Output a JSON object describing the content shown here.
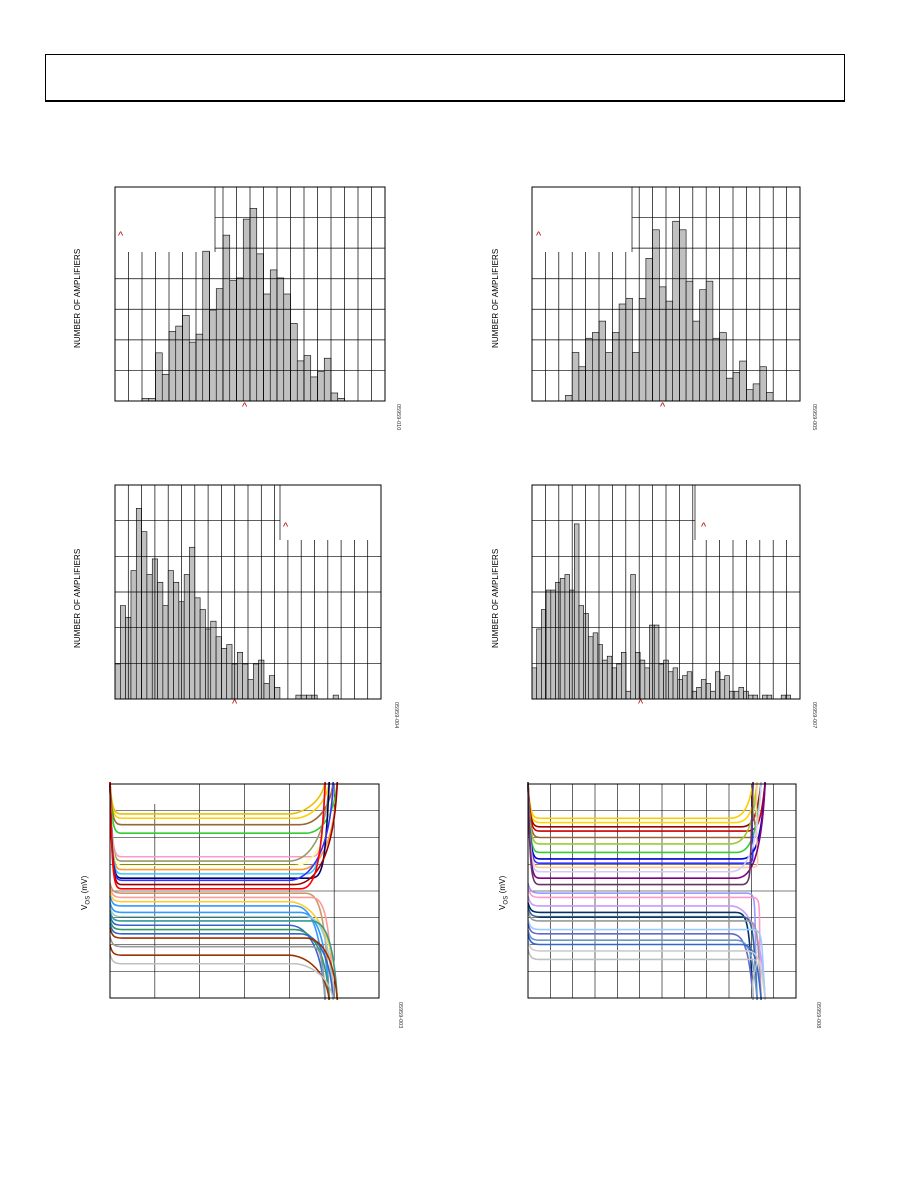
{
  "header": {
    "title": ""
  },
  "charts": [
    {
      "id": "h1",
      "type": "bar",
      "ylabel": "NUMBER OF AMPLIFIERS",
      "figcode": "05959-010",
      "colors": {
        "bar": "#c0c0c0",
        "stroke": "#000000",
        "grid": "#000000",
        "caret": "#c00000"
      },
      "chart_data": {
        "type": "bar",
        "values": [
          0,
          0,
          0,
          0,
          0.1,
          0.1,
          1.8,
          1.0,
          2.6,
          2.8,
          3.2,
          2.2,
          2.5,
          5.6,
          3.4,
          4.2,
          6.2,
          4.5,
          4.6,
          6.8,
          7.2,
          5.5,
          4.0,
          4.9,
          4.6,
          4.0,
          2.9,
          1.5,
          1.7,
          0.9,
          1.1,
          1.6,
          0.3,
          0.1,
          0,
          0,
          0,
          0,
          0,
          0
        ]
      },
      "grid": {
        "vlines": 20,
        "hlines": 7
      }
    },
    {
      "id": "h2",
      "type": "bar",
      "ylabel": "NUMBER OF AMPLIFIERS",
      "figcode": "05959-005",
      "colors": {
        "bar": "#c0c0c0",
        "stroke": "#000000",
        "grid": "#000000",
        "caret": "#c00000"
      },
      "chart_data": {
        "type": "bar",
        "values": [
          0,
          0,
          0,
          0,
          0,
          0.2,
          1.7,
          1.2,
          2.2,
          2.4,
          2.8,
          1.7,
          2.4,
          3.4,
          3.6,
          1.7,
          3.6,
          5.0,
          6.0,
          4.0,
          3.5,
          6.3,
          6.0,
          4.2,
          2.8,
          3.9,
          4.2,
          2.2,
          2.4,
          0.8,
          1.0,
          1.4,
          0.4,
          0.6,
          1.2,
          0.3,
          0,
          0,
          0,
          0
        ]
      },
      "grid": {
        "vlines": 20,
        "hlines": 7
      }
    },
    {
      "id": "h3",
      "type": "bar",
      "ylabel": "NUMBER OF AMPLIFIERS",
      "figcode": "05959-004",
      "colors": {
        "bar": "#c0c0c0",
        "stroke": "#000000",
        "grid": "#000000",
        "caret": "#c00000"
      },
      "chart_data": {
        "type": "bar",
        "values": [
          0.9,
          2.4,
          2.1,
          3.3,
          4.9,
          4.3,
          3.2,
          3.6,
          3.0,
          2.4,
          3.3,
          3.0,
          2.5,
          3.2,
          3.9,
          2.6,
          2.3,
          1.8,
          2.0,
          1.6,
          1.3,
          1.4,
          0.9,
          1.2,
          0.9,
          0.5,
          0.9,
          1.0,
          0.4,
          0.6,
          0.3,
          0,
          0,
          0,
          0.1,
          0.1,
          0.1,
          0.1,
          0,
          0,
          0,
          0.1,
          0,
          0,
          0,
          0,
          0,
          0,
          0,
          0
        ]
      },
      "grid": {
        "vlines": 20,
        "hlines": 6
      }
    },
    {
      "id": "h4",
      "type": "bar",
      "ylabel": "NUMBER OF AMPLIFIERS",
      "figcode": "05959-007",
      "colors": {
        "bar": "#c0c0c0",
        "stroke": "#000000",
        "grid": "#000000",
        "caret": "#c00000"
      },
      "chart_data": {
        "type": "bar",
        "values": [
          0.8,
          1.8,
          2.3,
          2.8,
          2.8,
          3.0,
          3.1,
          3.2,
          2.8,
          4.5,
          2.4,
          2.2,
          1.6,
          1.7,
          1.4,
          1.0,
          1.1,
          0.8,
          0.9,
          1.2,
          0.2,
          3.2,
          1.2,
          1.0,
          0.8,
          1.9,
          1.9,
          0.9,
          1.0,
          0.7,
          0.8,
          0.5,
          0.6,
          0.7,
          0.2,
          0.3,
          0.5,
          0.4,
          0.2,
          0.7,
          0.5,
          0.6,
          0.2,
          0.2,
          0.3,
          0.2,
          0.1,
          0.1,
          0,
          0.1,
          0.1,
          0,
          0,
          0.1,
          0.1,
          0,
          0
        ]
      },
      "grid": {
        "vlines": 20,
        "hlines": 6
      }
    },
    {
      "id": "l1",
      "type": "line",
      "ylabel": "V",
      "ylabel_sub": "OS",
      "ylabel_unit": " (mV)",
      "figcode": "05959-003",
      "grid": {
        "vlines": 6,
        "hlines": 8
      },
      "colors": {
        "grid": "#000000"
      },
      "chart_data": {
        "type": "line",
        "series_levels": [
          0.14,
          0.16,
          0.19,
          0.23,
          0.34,
          0.36,
          0.38,
          0.4,
          0.42,
          0.44,
          0.45,
          0.47,
          0.49,
          0.51,
          0.53,
          0.55,
          0.57,
          0.6,
          0.62,
          0.64,
          0.66,
          0.68,
          0.7,
          0.72,
          0.76,
          0.8,
          0.84
        ],
        "series_colors": [
          "#e8c000",
          "#ffd000",
          "#996633",
          "#33cc33",
          "#ff99cc",
          "#999966",
          "#ffff99",
          "#ff9933",
          "#33ccff",
          "#000066",
          "#3333ff",
          "#990000",
          "#ff0000",
          "#cc9966",
          "#ff9999",
          "#ffcc33",
          "#3399ff",
          "#3399ff",
          "#99cccc",
          "#339999",
          "#3366cc",
          "#339966",
          "#3366cc",
          "#993300",
          "#999999",
          "#993300",
          "#c0c0c0"
        ]
      }
    },
    {
      "id": "l2",
      "type": "line",
      "ylabel": "V",
      "ylabel_sub": "OS",
      "ylabel_unit": " (mV)",
      "figcode": "05959-008",
      "grid": {
        "vlines": 12,
        "hlines": 8
      },
      "colors": {
        "grid": "#000000"
      },
      "chart_data": {
        "type": "line",
        "series_levels": [
          0.16,
          0.18,
          0.2,
          0.22,
          0.25,
          0.28,
          0.32,
          0.35,
          0.37,
          0.39,
          0.41,
          0.44,
          0.47,
          0.51,
          0.53,
          0.57,
          0.6,
          0.62,
          0.64,
          0.68,
          0.7,
          0.73,
          0.75,
          0.78,
          0.82
        ],
        "series_colors": [
          "#ffcc00",
          "#ffd700",
          "#990000",
          "#cc0000",
          "#996633",
          "#99cc33",
          "#33cc33",
          "#0000cc",
          "#3333ff",
          "#ffcc99",
          "#ccccff",
          "#800080",
          "#663366",
          "#9999ff",
          "#ff99cc",
          "#cc99ff",
          "#003366",
          "#336699",
          "#999999",
          "#99ccff",
          "#6666cc",
          "#6699cc",
          "#3366cc",
          "#cccccc",
          "#c0c0c0"
        ]
      }
    }
  ]
}
